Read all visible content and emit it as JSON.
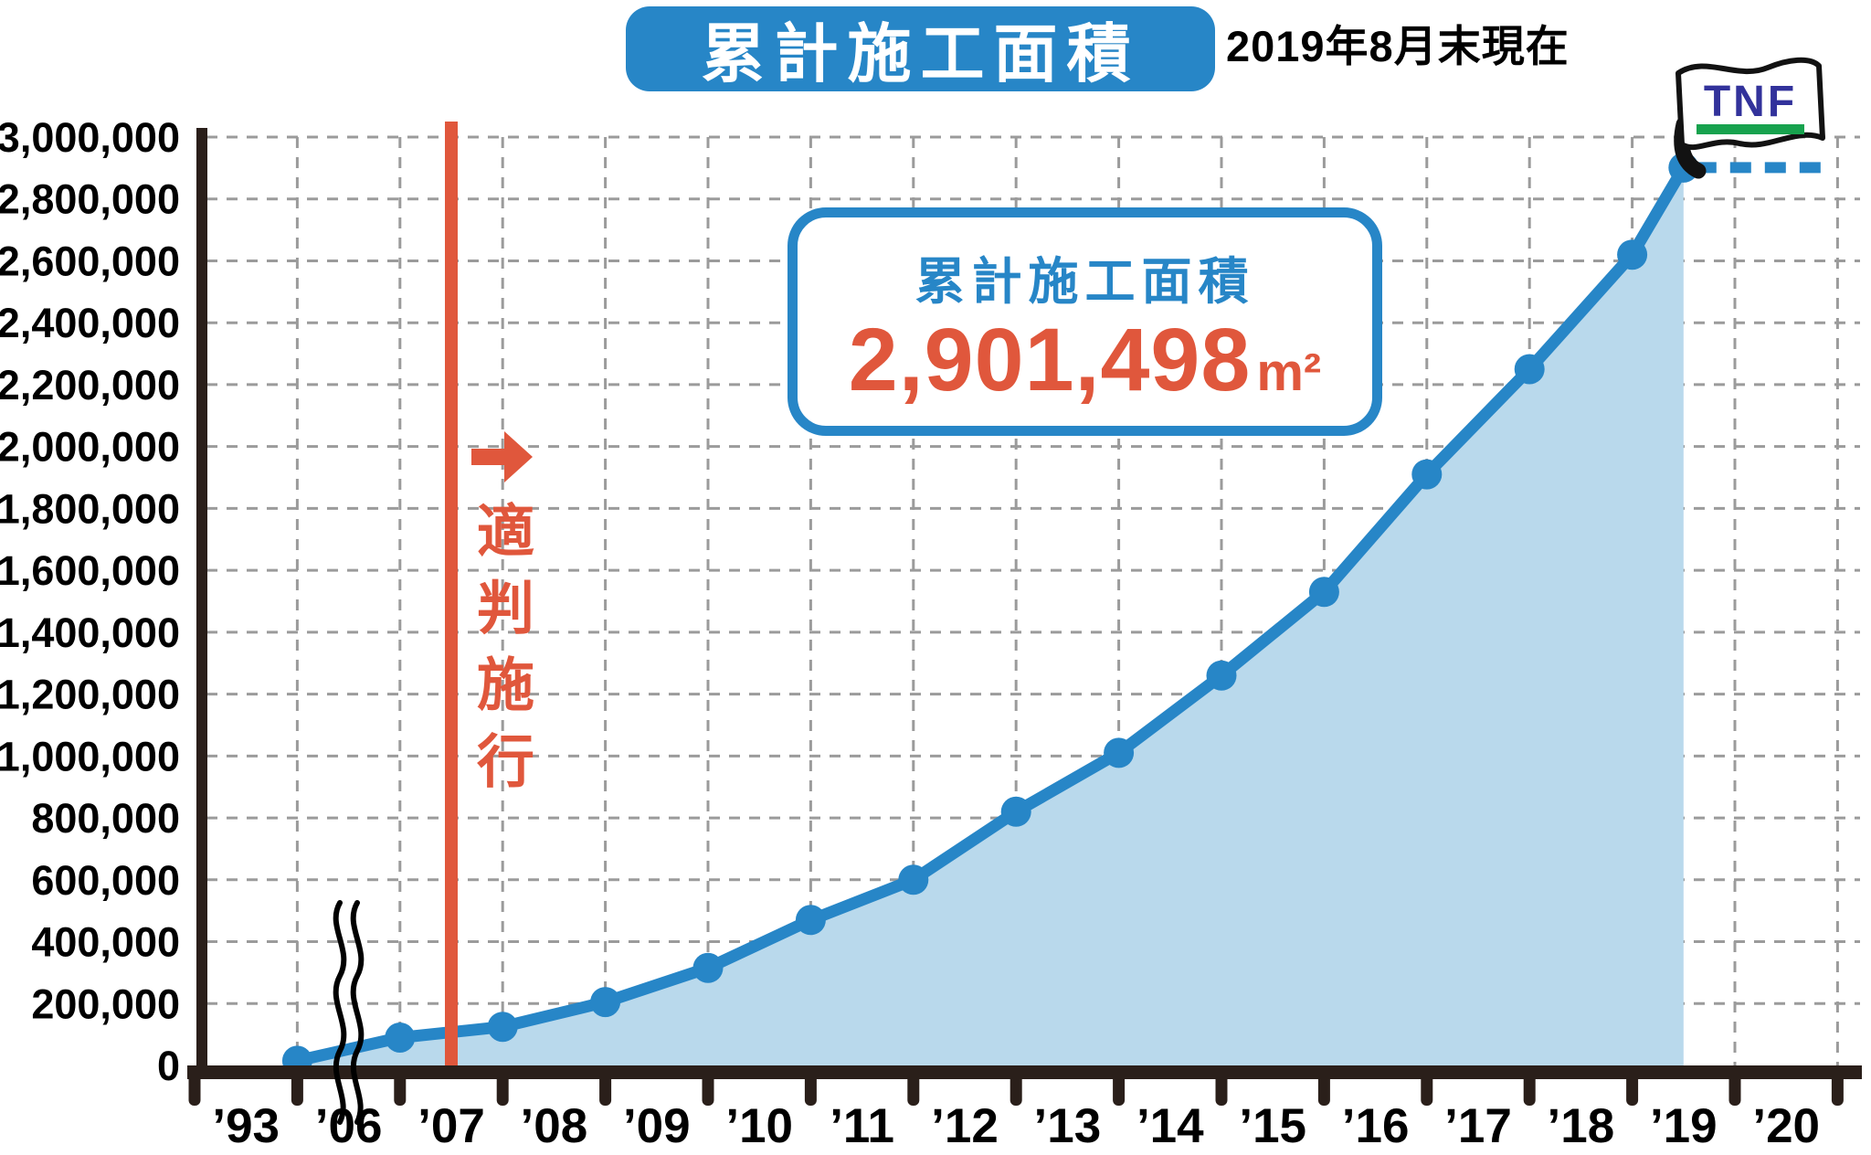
{
  "header": {
    "title": "累計施工面積",
    "as_of": "2019年8月末現在"
  },
  "callout": {
    "label": "累計施工面積",
    "value": "2,901,498",
    "unit": "m²"
  },
  "annotation": {
    "text": "適判施行"
  },
  "flag": {
    "label": "TNF"
  },
  "colors": {
    "blue": "#2786c7",
    "light_blue": "#b9d9ec",
    "red": "#e0573c",
    "navy": "#32329b",
    "green": "#17a24e",
    "axis_dark": "#2a1f1a",
    "grid_gray": "#9b9b9b"
  },
  "chart_data": {
    "type": "area",
    "title": "累計施工面積",
    "subtitle": "2019年8月末現在",
    "ylabel": "",
    "xlabel": "",
    "ylim": [
      0,
      3000000
    ],
    "y_step": 200000,
    "grid": true,
    "axis_break": {
      "between": [
        "’93",
        "’06"
      ]
    },
    "event_line": {
      "label": "適判施行",
      "at_x_label": "’07",
      "tick": 2.5
    },
    "end_flag": {
      "label": "TNF",
      "value": 2901498
    },
    "x_tick_labels": [
      "’93",
      "’06",
      "’07",
      "’08",
      "’09",
      "’10",
      "’11",
      "’12",
      "’13",
      "’14",
      "’15",
      "’16",
      "’17",
      "’18",
      "’19",
      "’20"
    ],
    "y_tick_labels": [
      "0",
      "200,000",
      "400,000",
      "600,000",
      "800,000",
      "1,000,000",
      "1,200,000",
      "1,400,000",
      "1,600,000",
      "1,800,000",
      "2,000,000",
      "2,200,000",
      "2,400,000",
      "2,600,000",
      "2,800,000",
      "3,000,000"
    ],
    "series": [
      {
        "name": "累計施工面積 (m²)",
        "points": [
          {
            "period": "1993–2005",
            "tick": 1,
            "value": 15000
          },
          {
            "period": "2006",
            "tick": 2,
            "value": 90000
          },
          {
            "period": "2007",
            "tick": 3,
            "value": 125000
          },
          {
            "period": "2008",
            "tick": 4,
            "value": 205000
          },
          {
            "period": "2009",
            "tick": 5,
            "value": 315000
          },
          {
            "period": "2010",
            "tick": 6,
            "value": 470000
          },
          {
            "period": "2011",
            "tick": 7,
            "value": 600000
          },
          {
            "period": "2012",
            "tick": 8,
            "value": 820000
          },
          {
            "period": "2013",
            "tick": 9,
            "value": 1010000
          },
          {
            "period": "2014",
            "tick": 10,
            "value": 1260000
          },
          {
            "period": "2015",
            "tick": 11,
            "value": 1530000
          },
          {
            "period": "2016",
            "tick": 12,
            "value": 1910000
          },
          {
            "period": "2017",
            "tick": 13,
            "value": 2250000
          },
          {
            "period": "2018",
            "tick": 14,
            "value": 2620000
          },
          {
            "period": "2019年8月",
            "tick": 14.5,
            "value": 2901498
          }
        ]
      }
    ]
  }
}
